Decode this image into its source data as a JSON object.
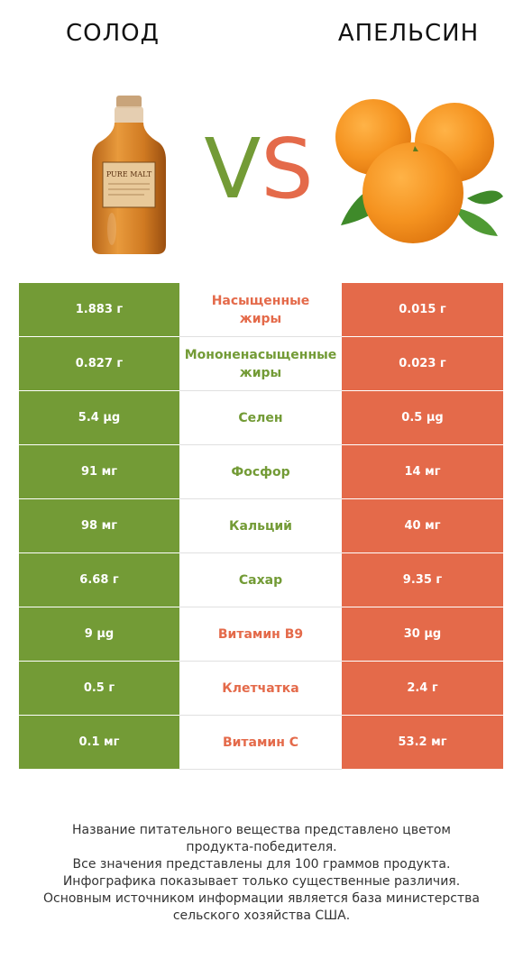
{
  "header": {
    "left_title": "СОЛОД",
    "right_title": "АПЕЛЬСИН",
    "vs_v": "V",
    "vs_s": "S"
  },
  "images": {
    "left": {
      "icon": "malt-bottle",
      "label_text": "PURE MALT"
    },
    "right": {
      "icon": "oranges"
    }
  },
  "colors": {
    "green": "#739b36",
    "red": "#e46a4a"
  },
  "rows": [
    {
      "left": "1.883 г",
      "name_line1": "Насыщенные",
      "name_line2": "жиры",
      "right": "0.015 г",
      "winner": "red"
    },
    {
      "left": "0.827 г",
      "name_line1": "Мононенасыщенные",
      "name_line2": "жиры",
      "right": "0.023 г",
      "winner": "green"
    },
    {
      "left": "5.4 µg",
      "name_line1": "Селен",
      "name_line2": "",
      "right": "0.5 µg",
      "winner": "green"
    },
    {
      "left": "91 мг",
      "name_line1": "Фосфор",
      "name_line2": "",
      "right": "14 мг",
      "winner": "green"
    },
    {
      "left": "98 мг",
      "name_line1": "Кальций",
      "name_line2": "",
      "right": "40 мг",
      "winner": "green"
    },
    {
      "left": "6.68 г",
      "name_line1": "Сахар",
      "name_line2": "",
      "right": "9.35 г",
      "winner": "green"
    },
    {
      "left": "9 µg",
      "name_line1": "Витамин B9",
      "name_line2": "",
      "right": "30 µg",
      "winner": "red"
    },
    {
      "left": "0.5 г",
      "name_line1": "Клетчатка",
      "name_line2": "",
      "right": "2.4 г",
      "winner": "red"
    },
    {
      "left": "0.1 мг",
      "name_line1": "Витамин C",
      "name_line2": "",
      "right": "53.2 мг",
      "winner": "red"
    }
  ],
  "footer": {
    "line1": "Название питательного вещества представлено цветом",
    "line2": "продукта-победителя.",
    "line3": "Все значения представлены для 100 граммов продукта.",
    "line4": "Инфографика показывает только существенные различия.",
    "line5": "Основным источником информации является база министерства",
    "line6": "сельского хозяйства США."
  }
}
